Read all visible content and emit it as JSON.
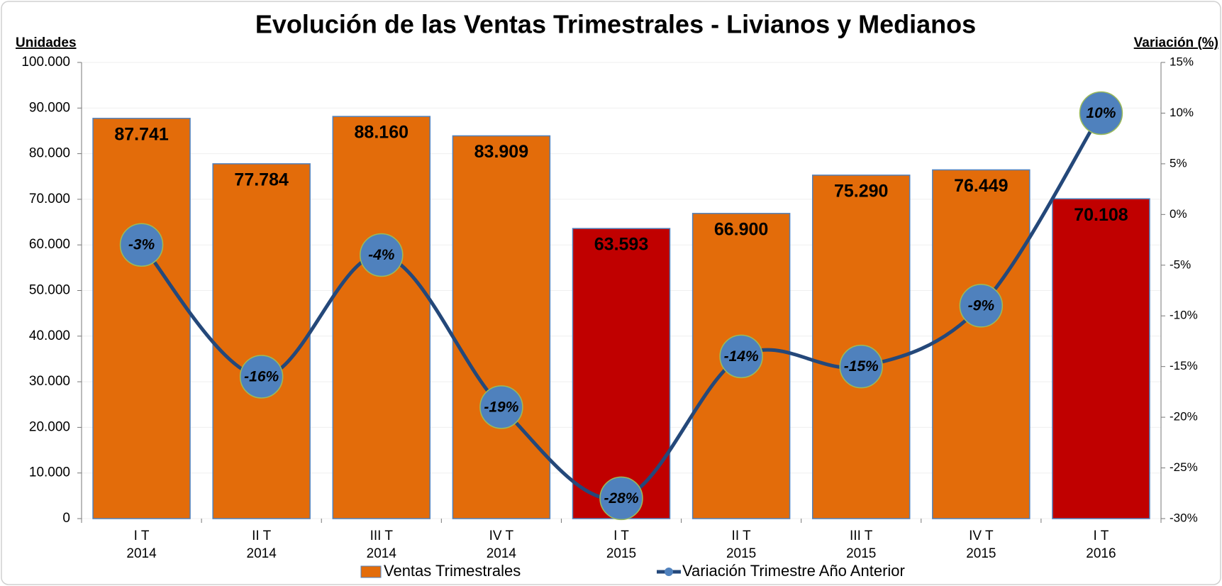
{
  "chart_data": {
    "type": "combo",
    "title": "Evolución de las Ventas Trimestrales - Livianos y Medianos",
    "y_label": "Unidades",
    "y2_label": "Variación (%)",
    "categories": [
      [
        "I T",
        "2014"
      ],
      [
        "II T",
        "2014"
      ],
      [
        "III T",
        "2014"
      ],
      [
        "IV T",
        "2014"
      ],
      [
        "I T",
        "2015"
      ],
      [
        "II T",
        "2015"
      ],
      [
        "III T",
        "2015"
      ],
      [
        "IV T",
        "2015"
      ],
      [
        "I T",
        "2016"
      ]
    ],
    "ylim": [
      0,
      100000
    ],
    "yticks": [
      {
        "value": 0,
        "label": "0"
      },
      {
        "value": 10000,
        "label": "10.000"
      },
      {
        "value": 20000,
        "label": "20.000"
      },
      {
        "value": 30000,
        "label": "30.000"
      },
      {
        "value": 40000,
        "label": "40.000"
      },
      {
        "value": 50000,
        "label": "50.000"
      },
      {
        "value": 60000,
        "label": "60.000"
      },
      {
        "value": 70000,
        "label": "70.000"
      },
      {
        "value": 80000,
        "label": "80.000"
      },
      {
        "value": 90000,
        "label": "90.000"
      },
      {
        "value": 100000,
        "label": "100.000"
      }
    ],
    "y2lim": [
      -30,
      15
    ],
    "y2ticks": [
      {
        "value": -30,
        "label": "-30%"
      },
      {
        "value": -25,
        "label": "-25%"
      },
      {
        "value": -20,
        "label": "-20%"
      },
      {
        "value": -15,
        "label": "-15%"
      },
      {
        "value": -10,
        "label": "-10%"
      },
      {
        "value": -5,
        "label": "-5%"
      },
      {
        "value": 0,
        "label": "0%"
      },
      {
        "value": 5,
        "label": "5%"
      },
      {
        "value": 10,
        "label": "10%"
      },
      {
        "value": 15,
        "label": "15%"
      }
    ],
    "grid": true,
    "legend": "bottom",
    "series": [
      {
        "name": "Ventas Trimestrales",
        "type": "bar",
        "color": "#E36C0A",
        "colors": [
          "#E36C0A",
          "#E36C0A",
          "#E36C0A",
          "#E36C0A",
          "#C00000",
          "#E36C0A",
          "#E36C0A",
          "#E36C0A",
          "#C00000"
        ],
        "values": [
          87741,
          77784,
          88160,
          83909,
          63593,
          66900,
          75290,
          76449,
          70108
        ],
        "value_labels": [
          "87.741",
          "77.784",
          "88.160",
          "83.909",
          "63.593",
          "66.900",
          "75.290",
          "76.449",
          "70.108"
        ]
      },
      {
        "name": "Variación Trimestre Año Anterior",
        "type": "line",
        "axis": "y2",
        "color": "#24487A",
        "marker_color": "#4F81BD",
        "marker_edge": "#9BBB59",
        "values": [
          -3,
          -16,
          -4,
          -19,
          -28,
          -14,
          -15,
          -9,
          10
        ],
        "value_labels": [
          "-3%",
          "-16%",
          "-4%",
          "-19%",
          "-28%",
          "-14%",
          "-15%",
          "-9%",
          "10%"
        ]
      }
    ]
  }
}
